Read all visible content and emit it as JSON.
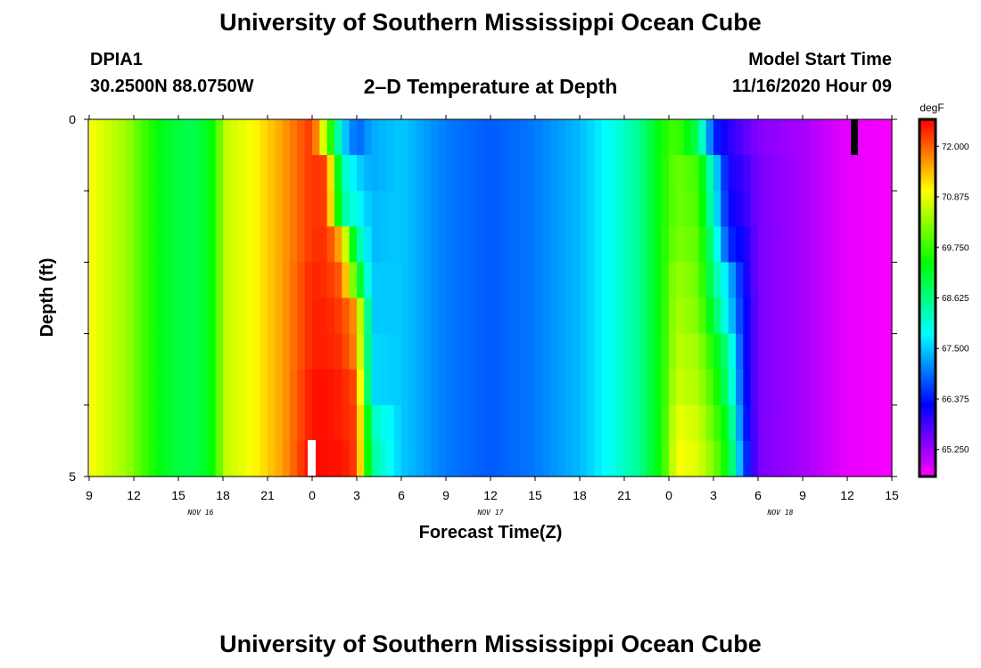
{
  "header": {
    "title": "University of Southern Mississippi Ocean Cube",
    "station": "DPIA1",
    "coords": "30.2500N 88.0750W",
    "subtitle": "2–D Temperature at Depth",
    "start_label": "Model Start Time",
    "start_time": "11/16/2020 Hour 09"
  },
  "footer": {
    "title": "University of Southern Mississippi Ocean Cube"
  },
  "chart_data": {
    "type": "heatmap",
    "title": "2–D Temperature at Depth",
    "xlabel": "Forecast Time(Z)",
    "ylabel": "Depth (ft)",
    "x_hours_range": [
      0,
      54
    ],
    "y_range": [
      0,
      5
    ],
    "y_ticks": [
      "0",
      "5"
    ],
    "x_tick_labels": [
      "9",
      "12",
      "15",
      "18",
      "21",
      "0",
      "3",
      "6",
      "9",
      "12",
      "15",
      "18",
      "21",
      "0",
      "3",
      "6",
      "9",
      "12",
      "15"
    ],
    "date_labels": [
      {
        "text": "NOV 16",
        "hour": 7.5
      },
      {
        "text": "NOV 17",
        "hour": 27
      },
      {
        "text": "NOV 18",
        "hour": 46.5
      }
    ],
    "colorbar": {
      "unit": "degF",
      "labels": [
        "72.000",
        "70.875",
        "69.750",
        "68.625",
        "67.500",
        "66.375",
        "65.250"
      ],
      "min": 64.65,
      "max": 72.6
    },
    "layer_depths_ft": [
      0.25,
      0.75,
      1.25,
      1.75,
      2.25,
      2.75,
      3.25,
      3.75,
      4.25,
      4.75
    ],
    "profiles": [
      {
        "hour": 0,
        "temps": [
          71.0,
          71.0,
          71.0,
          71.0,
          71.0,
          71.0,
          71.0,
          71.0,
          71.0,
          71.0
        ]
      },
      {
        "hour": 2.5,
        "temps": [
          70.4,
          70.4,
          70.4,
          70.4,
          70.4,
          70.4,
          70.4,
          70.4,
          70.4,
          70.4
        ]
      },
      {
        "hour": 5,
        "temps": [
          69.2,
          69.2,
          69.2,
          69.2,
          69.2,
          69.2,
          69.2,
          69.2,
          69.2,
          69.2
        ]
      },
      {
        "hour": 7,
        "temps": [
          68.9,
          68.9,
          68.9,
          68.9,
          68.9,
          68.9,
          68.9,
          68.9,
          68.9,
          68.9
        ]
      },
      {
        "hour": 8.5,
        "temps": [
          69.5,
          69.5,
          69.5,
          69.5,
          69.5,
          69.5,
          69.5,
          69.5,
          69.5,
          69.5
        ]
      },
      {
        "hour": 9,
        "temps": [
          70.6,
          70.6,
          70.6,
          70.6,
          70.6,
          70.6,
          70.6,
          70.6,
          70.6,
          70.6
        ]
      },
      {
        "hour": 11,
        "temps": [
          71.0,
          71.0,
          71.0,
          71.0,
          71.0,
          71.0,
          71.0,
          71.0,
          71.0,
          71.0
        ]
      },
      {
        "hour": 13,
        "temps": [
          71.6,
          71.6,
          71.6,
          71.6,
          71.6,
          71.6,
          71.6,
          71.6,
          71.6,
          71.6
        ]
      },
      {
        "hour": 15,
        "temps": [
          72.3,
          72.3,
          72.3,
          72.3,
          72.4,
          72.4,
          72.4,
          72.5,
          72.5,
          72.6
        ]
      },
      {
        "hour": 16,
        "temps": [
          70.3,
          72.2,
          72.2,
          72.3,
          72.3,
          72.4,
          72.4,
          72.5,
          72.5,
          72.5
        ]
      },
      {
        "hour": 17,
        "temps": [
          67.7,
          68.3,
          68.5,
          71.4,
          72.0,
          72.2,
          72.3,
          72.4,
          72.4,
          72.5
        ]
      },
      {
        "hour": 18,
        "temps": [
          66.8,
          67.6,
          67.9,
          68.6,
          69.6,
          71.6,
          71.7,
          72.1,
          72.2,
          72.2
        ]
      },
      {
        "hour": 19,
        "temps": [
          67.3,
          67.3,
          67.4,
          67.4,
          67.5,
          67.5,
          67.6,
          67.6,
          68.3,
          68.5
        ]
      },
      {
        "hour": 21,
        "temps": [
          67.5,
          67.5,
          67.5,
          67.5,
          67.5,
          67.5,
          67.5,
          67.5,
          67.5,
          67.5
        ]
      },
      {
        "hour": 24,
        "temps": [
          67.0,
          67.0,
          67.0,
          67.0,
          67.0,
          67.0,
          67.0,
          67.0,
          67.0,
          67.0
        ]
      },
      {
        "hour": 27,
        "temps": [
          66.8,
          66.8,
          66.8,
          66.8,
          66.8,
          66.8,
          66.8,
          66.8,
          66.8,
          66.8
        ]
      },
      {
        "hour": 30,
        "temps": [
          67.0,
          67.0,
          67.0,
          67.0,
          67.0,
          67.0,
          67.0,
          67.0,
          67.0,
          67.0
        ]
      },
      {
        "hour": 33,
        "temps": [
          67.4,
          67.4,
          67.4,
          67.4,
          67.4,
          67.4,
          67.4,
          67.4,
          67.4,
          67.4
        ]
      },
      {
        "hour": 35,
        "temps": [
          67.9,
          67.9,
          67.9,
          67.9,
          67.9,
          67.9,
          67.9,
          67.9,
          67.9,
          67.9
        ]
      },
      {
        "hour": 37,
        "temps": [
          68.5,
          68.5,
          68.5,
          68.5,
          68.5,
          68.5,
          68.5,
          68.5,
          68.5,
          68.5
        ]
      },
      {
        "hour": 38.5,
        "temps": [
          69.5,
          69.5,
          69.5,
          69.5,
          69.5,
          69.5,
          69.5,
          69.5,
          69.5,
          69.5
        ]
      },
      {
        "hour": 39.5,
        "temps": [
          69.9,
          70.1,
          70.1,
          70.2,
          70.4,
          70.5,
          70.6,
          70.7,
          70.9,
          71.0
        ]
      },
      {
        "hour": 41,
        "temps": [
          68.8,
          69.8,
          69.9,
          70.0,
          70.1,
          70.2,
          70.4,
          70.5,
          70.7,
          70.8
        ]
      },
      {
        "hour": 42,
        "temps": [
          66.5,
          67.9,
          68.0,
          68.4,
          68.6,
          69.0,
          69.5,
          69.8,
          70.0,
          70.2
        ]
      },
      {
        "hour": 43,
        "temps": [
          66.0,
          66.1,
          66.2,
          66.5,
          67.5,
          67.7,
          68.5,
          68.6,
          69.1,
          69.3
        ]
      },
      {
        "hour": 44,
        "temps": [
          65.7,
          65.9,
          66.0,
          66.2,
          66.3,
          66.4,
          66.4,
          66.5,
          66.6,
          66.8
        ]
      },
      {
        "hour": 45,
        "temps": [
          65.4,
          65.5,
          65.5,
          65.5,
          65.5,
          65.5,
          65.5,
          65.5,
          65.5,
          65.5
        ]
      },
      {
        "hour": 48,
        "temps": [
          65.2,
          65.2,
          65.2,
          65.2,
          65.2,
          65.2,
          65.2,
          65.2,
          65.2,
          65.2
        ]
      },
      {
        "hour": 51,
        "temps": [
          64.8,
          64.8,
          64.8,
          64.8,
          64.8,
          64.8,
          64.8,
          64.8,
          64.8,
          64.8
        ]
      },
      {
        "hour": 54,
        "temps": [
          64.7,
          64.7,
          64.7,
          64.7,
          64.7,
          64.7,
          64.7,
          64.7,
          64.7,
          64.7
        ]
      }
    ]
  }
}
